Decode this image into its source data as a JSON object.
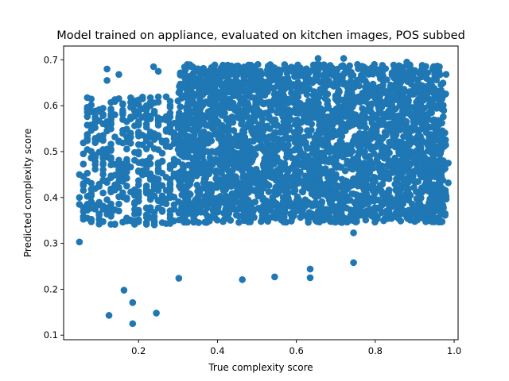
{
  "chart_data": {
    "type": "scatter",
    "title": "Model trained on appliance, evaluated on kitchen images, POS subbed",
    "xlabel": "True complexity score",
    "ylabel": "Predicted complexity score",
    "xlim": [
      0.01,
      1.01
    ],
    "ylim": [
      0.09,
      0.73
    ],
    "xticks": [
      0.2,
      0.4,
      0.6,
      0.8,
      1.0
    ],
    "xtick_labels": [
      "0.2",
      "0.4",
      "0.6",
      "0.8",
      "1.0"
    ],
    "yticks": [
      0.1,
      0.2,
      0.3,
      0.4,
      0.5,
      0.6,
      0.7
    ],
    "ytick_labels": [
      "0.1",
      "0.2",
      "0.3",
      "0.4",
      "0.5",
      "0.6",
      "0.7"
    ],
    "grid": false,
    "marker_color": "#1f77b4",
    "outlier_points": [
      {
        "x": 0.05,
        "y": 0.303
      },
      {
        "x": 0.125,
        "y": 0.143
      },
      {
        "x": 0.163,
        "y": 0.198
      },
      {
        "x": 0.185,
        "y": 0.171
      },
      {
        "x": 0.185,
        "y": 0.125
      },
      {
        "x": 0.245,
        "y": 0.148
      },
      {
        "x": 0.302,
        "y": 0.224
      },
      {
        "x": 0.463,
        "y": 0.221
      },
      {
        "x": 0.545,
        "y": 0.227
      },
      {
        "x": 0.635,
        "y": 0.244
      },
      {
        "x": 0.635,
        "y": 0.225
      },
      {
        "x": 0.745,
        "y": 0.323
      },
      {
        "x": 0.745,
        "y": 0.258
      },
      {
        "x": 0.05,
        "y": 0.45
      },
      {
        "x": 0.05,
        "y": 0.4
      },
      {
        "x": 0.05,
        "y": 0.385
      },
      {
        "x": 0.07,
        "y": 0.593
      },
      {
        "x": 0.07,
        "y": 0.535
      },
      {
        "x": 0.07,
        "y": 0.355
      },
      {
        "x": 0.12,
        "y": 0.68
      },
      {
        "x": 0.12,
        "y": 0.655
      },
      {
        "x": 0.15,
        "y": 0.668
      },
      {
        "x": 0.238,
        "y": 0.685
      },
      {
        "x": 0.25,
        "y": 0.675
      },
      {
        "x": 0.655,
        "y": 0.703
      },
      {
        "x": 0.72,
        "y": 0.703
      },
      {
        "x": 0.88,
        "y": 0.695
      },
      {
        "x": 0.97,
        "y": 0.6
      },
      {
        "x": 0.985,
        "y": 0.475
      },
      {
        "x": 0.985,
        "y": 0.432
      }
    ],
    "point_clusters": [
      {
        "x_range": [
          0.06,
          0.3
        ],
        "y_range": [
          0.34,
          0.62
        ],
        "count": 450,
        "x_step": 0.01
      },
      {
        "x_range": [
          0.3,
          0.98
        ],
        "y_range": [
          0.345,
          0.69
        ],
        "count": 3200
      }
    ]
  }
}
